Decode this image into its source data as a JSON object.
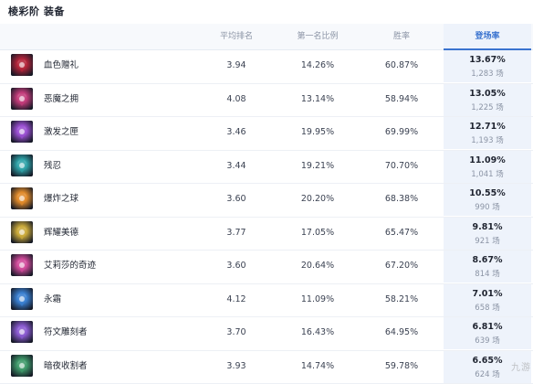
{
  "page_title": "棱彩阶 装备",
  "columns": {
    "avg_rank": "平均排名",
    "first_rate": "第一名比例",
    "win_rate": "胜率",
    "play_rate": "登场率"
  },
  "colors": {
    "accent": "#3a73cf",
    "header_bg": "#f7f9fc",
    "highlight_bg": "#eef3fb"
  },
  "items": [
    {
      "name": "血色赠礼",
      "avg_rank": "3.94",
      "first_rate": "14.26%",
      "win_rate": "60.87%",
      "play_rate": "13.67%",
      "count": "1,283 场",
      "icon": "blood-gift-icon",
      "icon_color": "#b3243a"
    },
    {
      "name": "恶魔之拥",
      "avg_rank": "4.08",
      "first_rate": "13.14%",
      "win_rate": "58.94%",
      "play_rate": "13.05%",
      "count": "1,225 场",
      "icon": "demon-embrace-icon",
      "icon_color": "#c23b7a"
    },
    {
      "name": "激发之匣",
      "avg_rank": "3.46",
      "first_rate": "19.95%",
      "win_rate": "69.99%",
      "play_rate": "12.71%",
      "count": "1,193 场",
      "icon": "spark-box-icon",
      "icon_color": "#9a4fd1"
    },
    {
      "name": "残忍",
      "avg_rank": "3.44",
      "first_rate": "19.21%",
      "win_rate": "70.70%",
      "play_rate": "11.09%",
      "count": "1,041 场",
      "icon": "cruelty-icon",
      "icon_color": "#2fa3a8"
    },
    {
      "name": "爆炸之球",
      "avg_rank": "3.60",
      "first_rate": "20.20%",
      "win_rate": "68.38%",
      "play_rate": "10.55%",
      "count": "990 场",
      "icon": "explosion-orb-icon",
      "icon_color": "#e08a2a"
    },
    {
      "name": "辉耀美德",
      "avg_rank": "3.77",
      "first_rate": "17.05%",
      "win_rate": "65.47%",
      "play_rate": "9.81%",
      "count": "921 场",
      "icon": "radiant-virtue-icon",
      "icon_color": "#c9a93a"
    },
    {
      "name": "艾莉莎的奇迹",
      "avg_rank": "3.60",
      "first_rate": "20.64%",
      "win_rate": "67.20%",
      "play_rate": "8.67%",
      "count": "814 场",
      "icon": "miracle-icon",
      "icon_color": "#d04a9a"
    },
    {
      "name": "永霜",
      "avg_rank": "4.12",
      "first_rate": "11.09%",
      "win_rate": "58.21%",
      "play_rate": "7.01%",
      "count": "658 场",
      "icon": "everfrost-icon",
      "icon_color": "#3a7fd0"
    },
    {
      "name": "符文雕刻者",
      "avg_rank": "3.70",
      "first_rate": "16.43%",
      "win_rate": "64.95%",
      "play_rate": "6.81%",
      "count": "639 场",
      "icon": "rune-carver-icon",
      "icon_color": "#8a5ad0"
    },
    {
      "name": "暗夜收割者",
      "avg_rank": "3.93",
      "first_rate": "14.74%",
      "win_rate": "59.78%",
      "play_rate": "6.65%",
      "count": "624 场",
      "icon": "night-reaper-icon",
      "icon_color": "#3f9a6a"
    }
  ]
}
